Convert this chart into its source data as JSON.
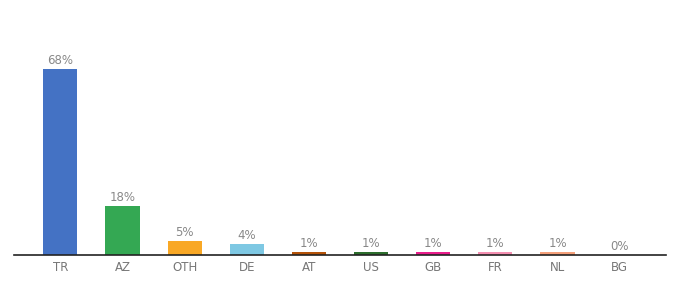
{
  "categories": [
    "TR",
    "AZ",
    "OTH",
    "DE",
    "AT",
    "US",
    "GB",
    "FR",
    "NL",
    "BG"
  ],
  "values": [
    68,
    18,
    5,
    4,
    1,
    1,
    1,
    1,
    1,
    0
  ],
  "labels": [
    "68%",
    "18%",
    "5%",
    "4%",
    "1%",
    "1%",
    "1%",
    "1%",
    "1%",
    "0%"
  ],
  "bar_colors": [
    "#4472c4",
    "#34a853",
    "#f9a825",
    "#7ec8e3",
    "#b45309",
    "#2d6e2d",
    "#e91e8c",
    "#f48fb1",
    "#f4a07a",
    "#f4a07a"
  ],
  "background_color": "#ffffff",
  "ylim": [
    0,
    80
  ],
  "label_fontsize": 8.5,
  "tick_fontsize": 8.5,
  "label_color": "#888888",
  "tick_color": "#777777",
  "bar_width": 0.55
}
